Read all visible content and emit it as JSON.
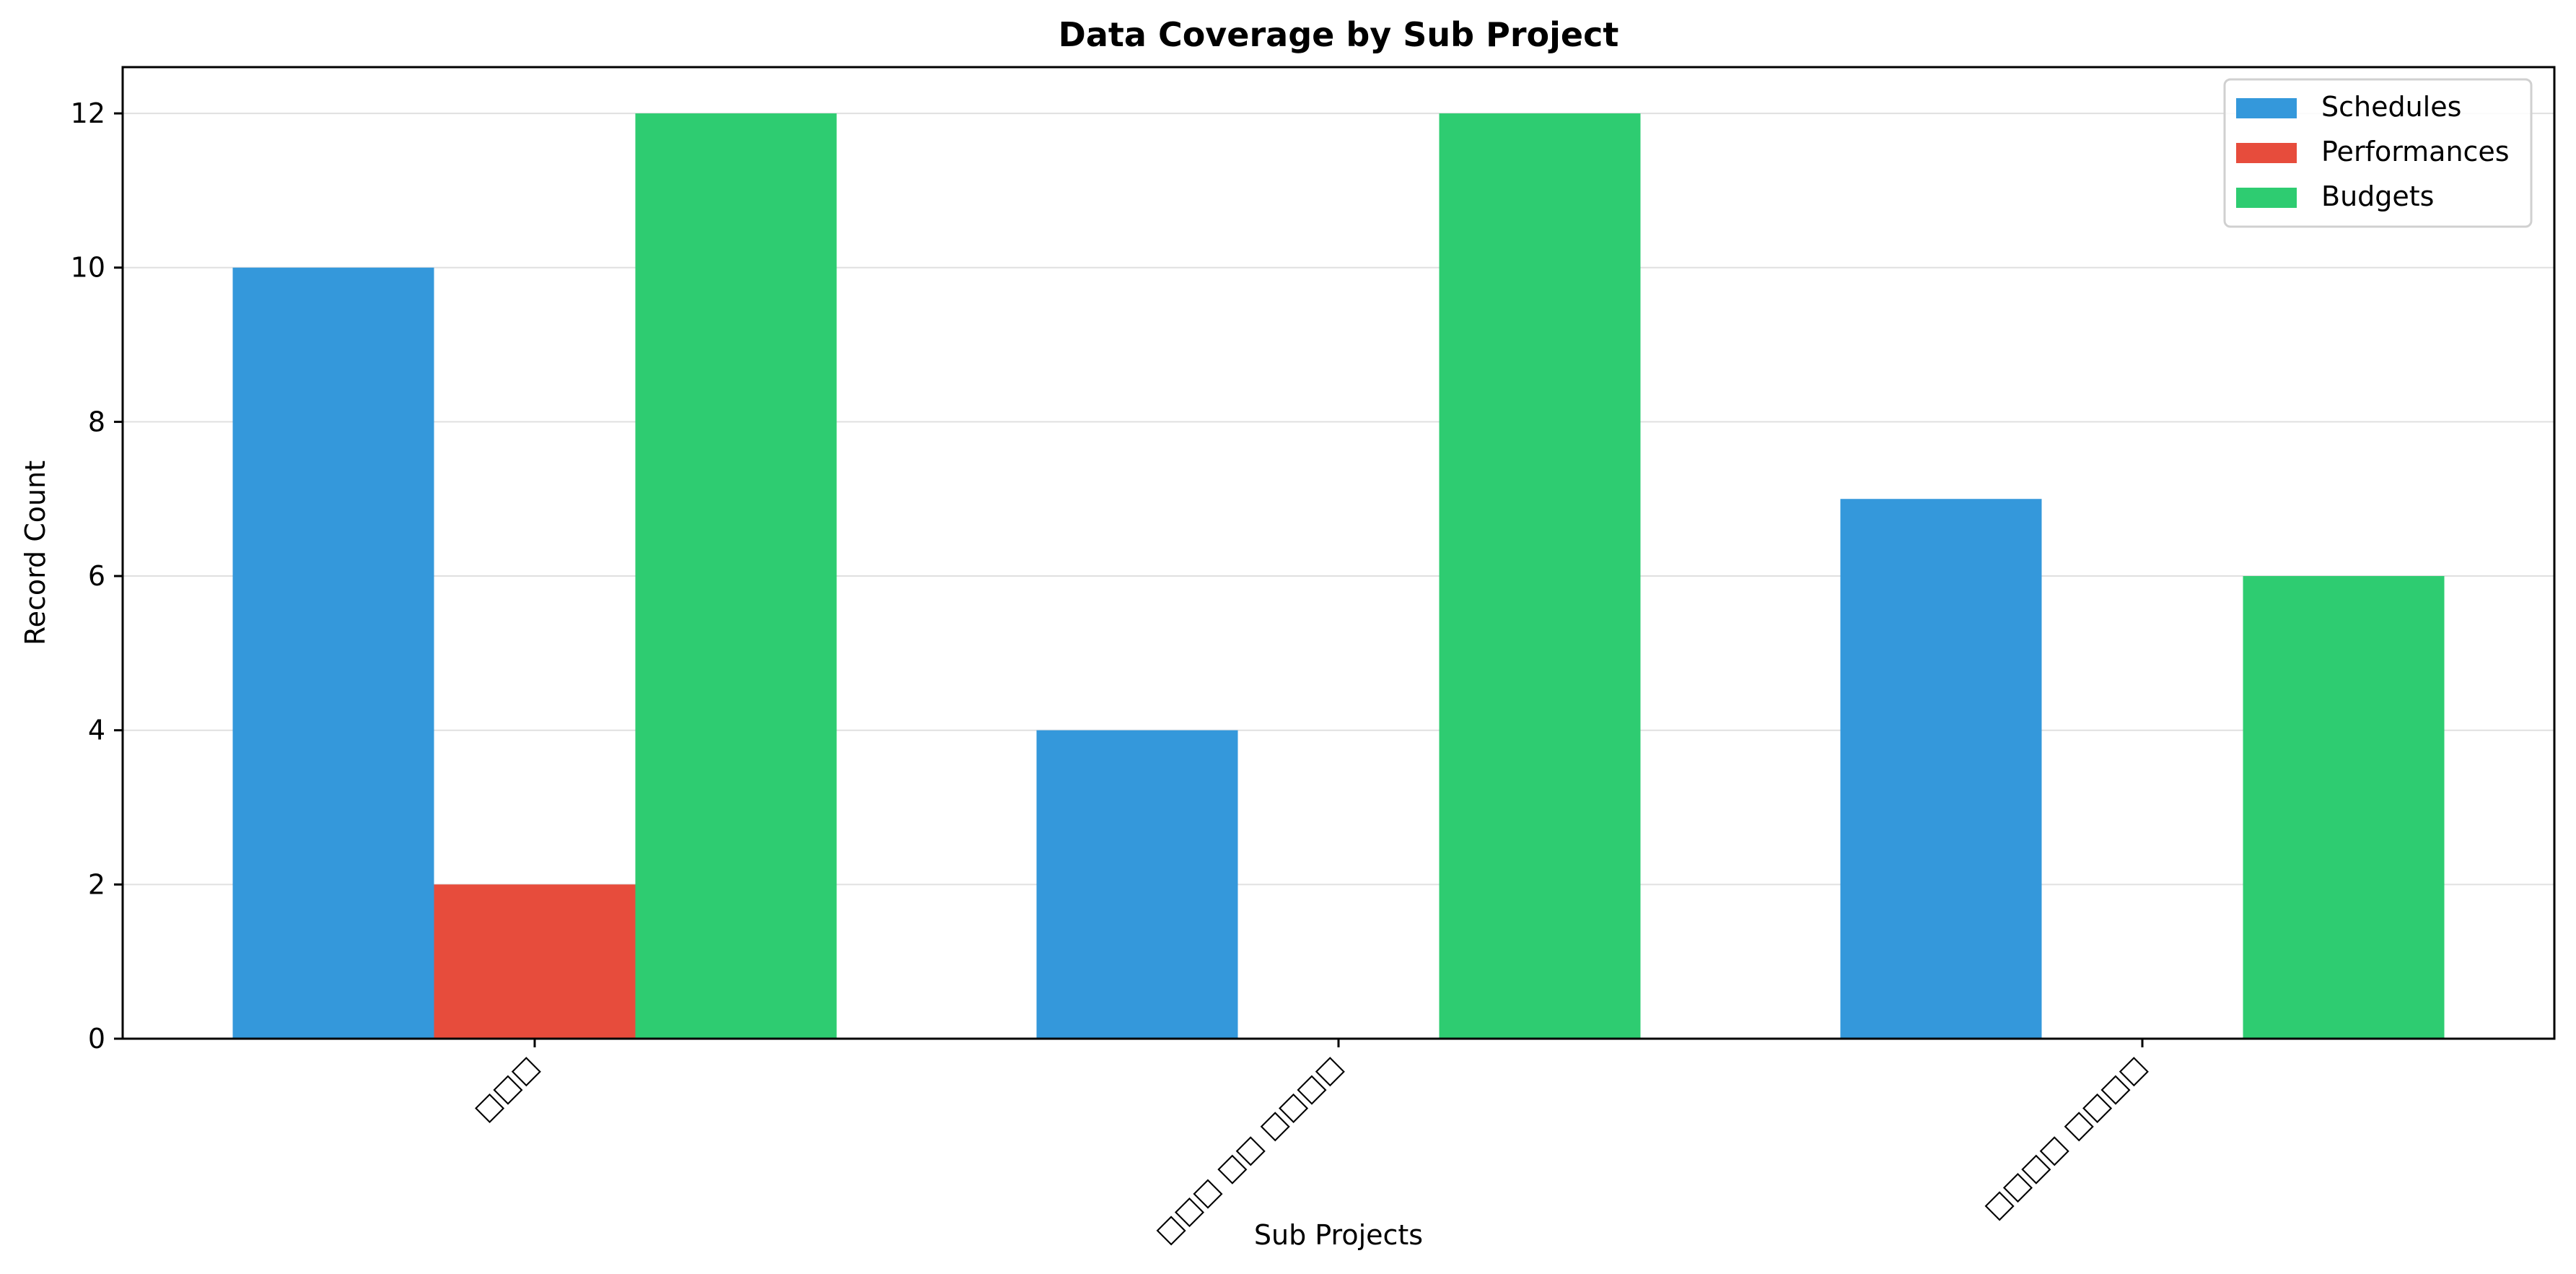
{
  "chart_data": {
    "type": "bar",
    "title": "Data Coverage by Sub Project",
    "xlabel": "Sub Projects",
    "ylabel": "Record Count",
    "categories": [
      "□□□",
      "□□□ □□ □□□□",
      "□□□□ □□□□"
    ],
    "series": [
      {
        "name": "Schedules",
        "values": [
          10,
          4,
          7
        ],
        "color": "#3498db"
      },
      {
        "name": "Performances",
        "values": [
          2,
          0,
          0
        ],
        "color": "#e74c3c"
      },
      {
        "name": "Budgets",
        "values": [
          12,
          12,
          6
        ],
        "color": "#2ecc71"
      }
    ],
    "ylim": [
      0,
      12.6
    ],
    "yticks": [
      "0",
      "2",
      "4",
      "6",
      "8",
      "10",
      "12"
    ],
    "grid": "y",
    "legend_position": "top-right"
  }
}
